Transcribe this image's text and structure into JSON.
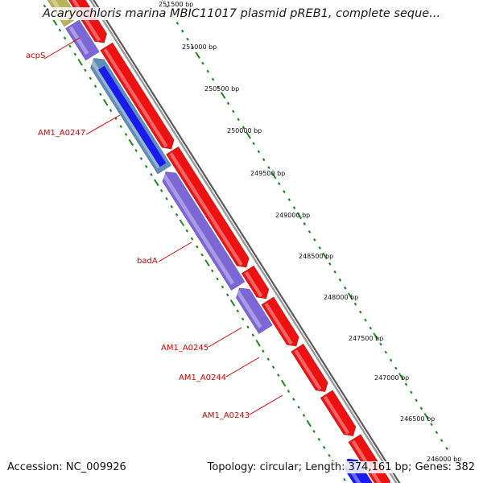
{
  "title": "Acaryochloris marina MBIC11017 plasmid pREB1, complete seque...",
  "footer": {
    "accession_label": "Accession:",
    "accession": "NC_009926",
    "topology_label": "Topology:",
    "topology": "circular",
    "length_label": "Length:",
    "length": "374,161 bp",
    "genes_label": "Genes:",
    "genes": "382"
  },
  "colors": {
    "forward_cds": "#ee1111",
    "reverse_cds": "#7b68d6",
    "reverse_cds_dark": "#1a1aee",
    "reverse_cds_teal": "#5f8fb8",
    "olive_feature": "#b7b35a",
    "backbone": "#808080",
    "tick": "#1f8a1f",
    "label": "#d40000"
  },
  "gene_labels": [
    "acpS",
    "AM1_A0247",
    "badA",
    "AM1_A0245",
    "AM1_A0244",
    "AM1_A0243"
  ],
  "position_ticks": [
    "251500 bp",
    "251000 bp",
    "250500 bp",
    "250000 bp",
    "249500 bp",
    "249000 bp",
    "248500 bp",
    "248000 bp",
    "247500 bp",
    "247000 bp",
    "246500 bp",
    "246000 bp"
  ]
}
